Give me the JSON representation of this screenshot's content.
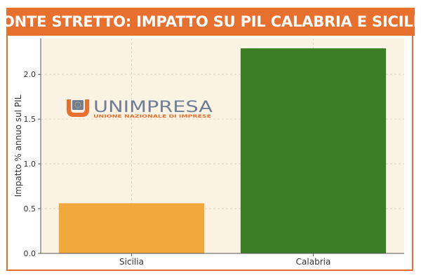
{
  "header": {
    "title": "PONTE STRETTO: IMPATTO SU PIL CALABRIA E SICILIA"
  },
  "logo": {
    "name": "UNIMPRESA",
    "tagline": "UNIONE NAZIONALE DI IMPRESE"
  },
  "colors": {
    "accent": "#e8702e",
    "plot_background": "#faf2e3",
    "sicilia_bar": "#f2a93b",
    "calabria_bar": "#3a7f23",
    "logo_blue": "#6f7e96",
    "logo_orange": "#e8702e"
  },
  "chart_data": {
    "type": "bar",
    "categories": [
      "Sicilia",
      "Calabria"
    ],
    "values": [
      0.56,
      2.29
    ],
    "bar_colors": [
      "#f2a93b",
      "#3a7f23"
    ],
    "ylabel": "Impatto % annuo sul PIL",
    "xlabel": "",
    "ylim": [
      0,
      2.4
    ],
    "yticks": [
      0.0,
      0.5,
      1.0,
      1.5,
      2.0
    ],
    "ytick_labels": [
      "0.0",
      "0.5",
      "1.0",
      "1.5",
      "2.0"
    ],
    "grid": true
  }
}
